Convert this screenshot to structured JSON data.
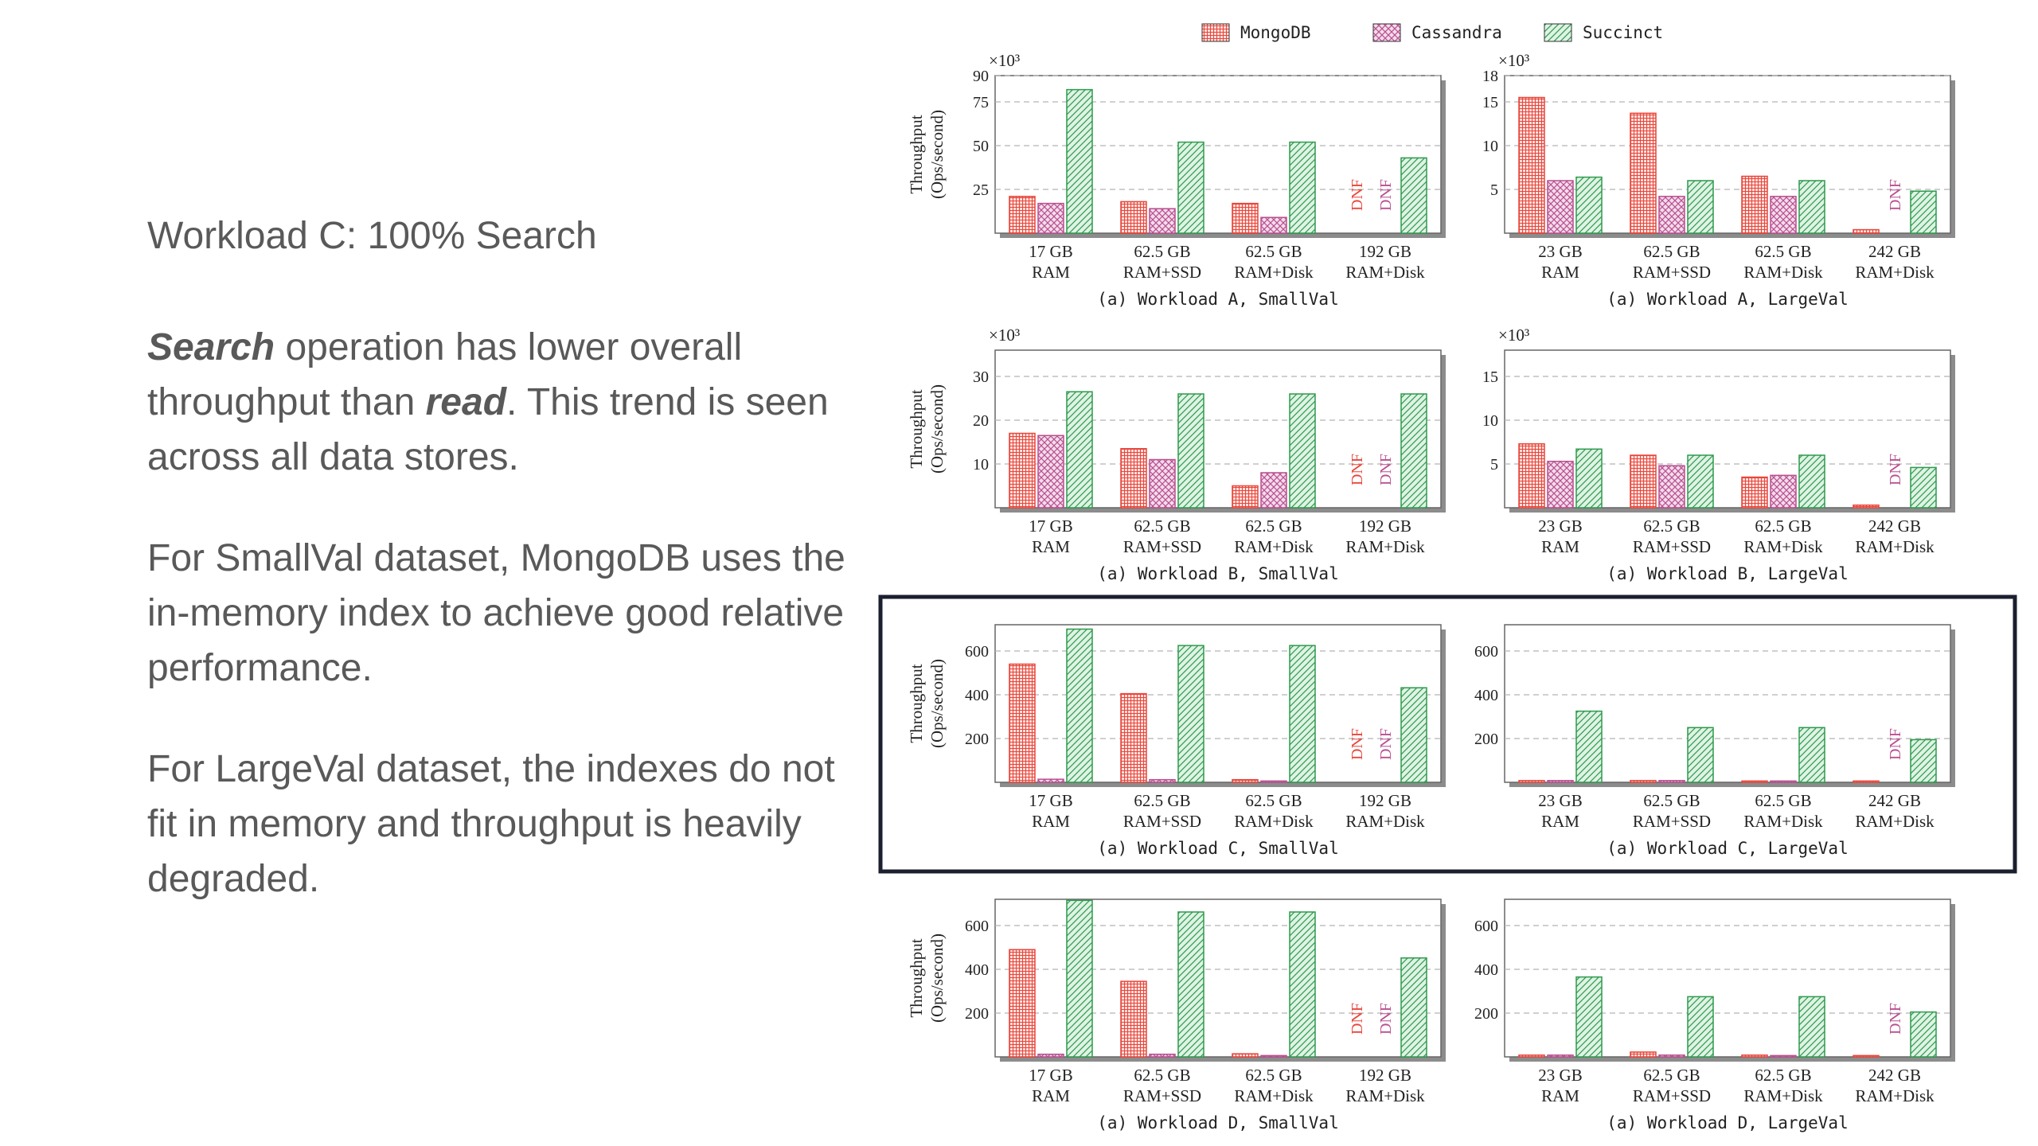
{
  "slide": {
    "heading": "Workload C: 100% Search",
    "para1": {
      "p1": "Search",
      "p2": " operation has lower overall throughput than ",
      "p3": "read",
      "p4": ". This trend is seen across all data stores."
    },
    "para2": "For SmallVal dataset, MongoDB uses the in-memory index to achieve good relative performance.",
    "para3": "For LargeVal dataset, the indexes do not fit in memory and throughput is heavily degraded."
  },
  "colors": {
    "mongodb": "#e8463c",
    "cassandra": "#b94f8f",
    "succinct": "#2e9a4e",
    "highlight": "#1b1f2e"
  },
  "legend": [
    "MongoDB",
    "Cassandra",
    "Succinct"
  ],
  "ylabel": [
    "Throughput",
    "(Ops/second)"
  ],
  "dnf_label": "DNF",
  "chart_data": [
    {
      "type": "bar",
      "title": "(a) Workload A, SmallVal",
      "scale_label": "×10³",
      "ylim": [
        0,
        90
      ],
      "yticks": [
        25,
        50,
        75,
        90
      ],
      "categories": [
        [
          "17 GB",
          "RAM"
        ],
        [
          "62.5 GB",
          "RAM+SSD"
        ],
        [
          "62.5 GB",
          "RAM+Disk"
        ],
        [
          "192 GB",
          "RAM+Disk"
        ]
      ],
      "series": [
        {
          "name": "MongoDB",
          "values": [
            21,
            18,
            17,
            null
          ]
        },
        {
          "name": "Cassandra",
          "values": [
            17,
            14,
            9,
            null
          ]
        },
        {
          "name": "Succinct",
          "values": [
            82,
            52,
            52,
            43
          ]
        }
      ]
    },
    {
      "type": "bar",
      "title": "(a) Workload A, LargeVal",
      "scale_label": "×10³",
      "ylim": [
        0,
        18
      ],
      "yticks": [
        5,
        10,
        15,
        18
      ],
      "categories": [
        [
          "23 GB",
          "RAM"
        ],
        [
          "62.5 GB",
          "RAM+SSD"
        ],
        [
          "62.5 GB",
          "RAM+Disk"
        ],
        [
          "242 GB",
          "RAM+Disk"
        ]
      ],
      "series": [
        {
          "name": "MongoDB",
          "values": [
            15.5,
            13.7,
            6.5,
            0.4
          ]
        },
        {
          "name": "Cassandra",
          "values": [
            6,
            4.2,
            4.2,
            null
          ]
        },
        {
          "name": "Succinct",
          "values": [
            6.4,
            6,
            6,
            4.8
          ]
        }
      ]
    },
    {
      "type": "bar",
      "title": "(a) Workload B, SmallVal",
      "scale_label": "×10³",
      "ylim": [
        0,
        36
      ],
      "yticks": [
        10,
        20,
        30
      ],
      "categories": [
        [
          "17 GB",
          "RAM"
        ],
        [
          "62.5 GB",
          "RAM+SSD"
        ],
        [
          "62.5 GB",
          "RAM+Disk"
        ],
        [
          "192 GB",
          "RAM+Disk"
        ]
      ],
      "series": [
        {
          "name": "MongoDB",
          "values": [
            17,
            13.5,
            5,
            null
          ]
        },
        {
          "name": "Cassandra",
          "values": [
            16.5,
            11,
            8,
            null
          ]
        },
        {
          "name": "Succinct",
          "values": [
            26.5,
            26,
            26,
            26
          ]
        }
      ]
    },
    {
      "type": "bar",
      "title": "(a) Workload B, LargeVal",
      "scale_label": "×10³",
      "ylim": [
        0,
        18
      ],
      "yticks": [
        5,
        10,
        15
      ],
      "categories": [
        [
          "23 GB",
          "RAM"
        ],
        [
          "62.5 GB",
          "RAM+SSD"
        ],
        [
          "62.5 GB",
          "RAM+Disk"
        ],
        [
          "242 GB",
          "RAM+Disk"
        ]
      ],
      "series": [
        {
          "name": "MongoDB",
          "values": [
            7.3,
            6,
            3.5,
            0.3
          ]
        },
        {
          "name": "Cassandra",
          "values": [
            5.3,
            4.8,
            3.7,
            null
          ]
        },
        {
          "name": "Succinct",
          "values": [
            6.7,
            6,
            6,
            4.6
          ]
        }
      ]
    },
    {
      "type": "bar",
      "title": "(a) Workload C, SmallVal",
      "scale_label": "",
      "ylim": [
        0,
        720
      ],
      "yticks": [
        200,
        400,
        600
      ],
      "categories": [
        [
          "17 GB",
          "RAM"
        ],
        [
          "62.5 GB",
          "RAM+SSD"
        ],
        [
          "62.5 GB",
          "RAM+Disk"
        ],
        [
          "192 GB",
          "RAM+Disk"
        ]
      ],
      "series": [
        {
          "name": "MongoDB",
          "values": [
            540,
            405,
            12,
            null
          ]
        },
        {
          "name": "Cassandra",
          "values": [
            14,
            12,
            6,
            null
          ]
        },
        {
          "name": "Succinct",
          "values": [
            700,
            625,
            625,
            432
          ]
        }
      ]
    },
    {
      "type": "bar",
      "title": "(a) Workload C, LargeVal",
      "scale_label": "",
      "ylim": [
        0,
        720
      ],
      "yticks": [
        200,
        400,
        600
      ],
      "categories": [
        [
          "23 GB",
          "RAM"
        ],
        [
          "62.5 GB",
          "RAM+SSD"
        ],
        [
          "62.5 GB",
          "RAM+Disk"
        ],
        [
          "242 GB",
          "RAM+Disk"
        ]
      ],
      "series": [
        {
          "name": "MongoDB",
          "values": [
            8,
            8,
            6,
            6
          ]
        },
        {
          "name": "Cassandra",
          "values": [
            8,
            8,
            6,
            null
          ]
        },
        {
          "name": "Succinct",
          "values": [
            325,
            250,
            250,
            195
          ]
        }
      ]
    },
    {
      "type": "bar",
      "title": "(a) Workload D, SmallVal",
      "scale_label": "",
      "ylim": [
        0,
        720
      ],
      "yticks": [
        200,
        400,
        600
      ],
      "categories": [
        [
          "17 GB",
          "RAM"
        ],
        [
          "62.5 GB",
          "RAM+SSD"
        ],
        [
          "62.5 GB",
          "RAM+Disk"
        ],
        [
          "192 GB",
          "RAM+Disk"
        ]
      ],
      "series": [
        {
          "name": "MongoDB",
          "values": [
            490,
            345,
            14,
            null
          ]
        },
        {
          "name": "Cassandra",
          "values": [
            12,
            12,
            6,
            null
          ]
        },
        {
          "name": "Succinct",
          "values": [
            715,
            662,
            662,
            452
          ]
        }
      ]
    },
    {
      "type": "bar",
      "title": "(a) Workload D, LargeVal",
      "scale_label": "",
      "ylim": [
        0,
        720
      ],
      "yticks": [
        200,
        400,
        600
      ],
      "categories": [
        [
          "23 GB",
          "RAM"
        ],
        [
          "62.5 GB",
          "RAM+SSD"
        ],
        [
          "62.5 GB",
          "RAM+Disk"
        ],
        [
          "242 GB",
          "RAM+Disk"
        ]
      ],
      "series": [
        {
          "name": "MongoDB",
          "values": [
            8,
            22,
            8,
            6
          ]
        },
        {
          "name": "Cassandra",
          "values": [
            8,
            8,
            6,
            null
          ]
        },
        {
          "name": "Succinct",
          "values": [
            365,
            275,
            275,
            205
          ]
        }
      ]
    }
  ]
}
